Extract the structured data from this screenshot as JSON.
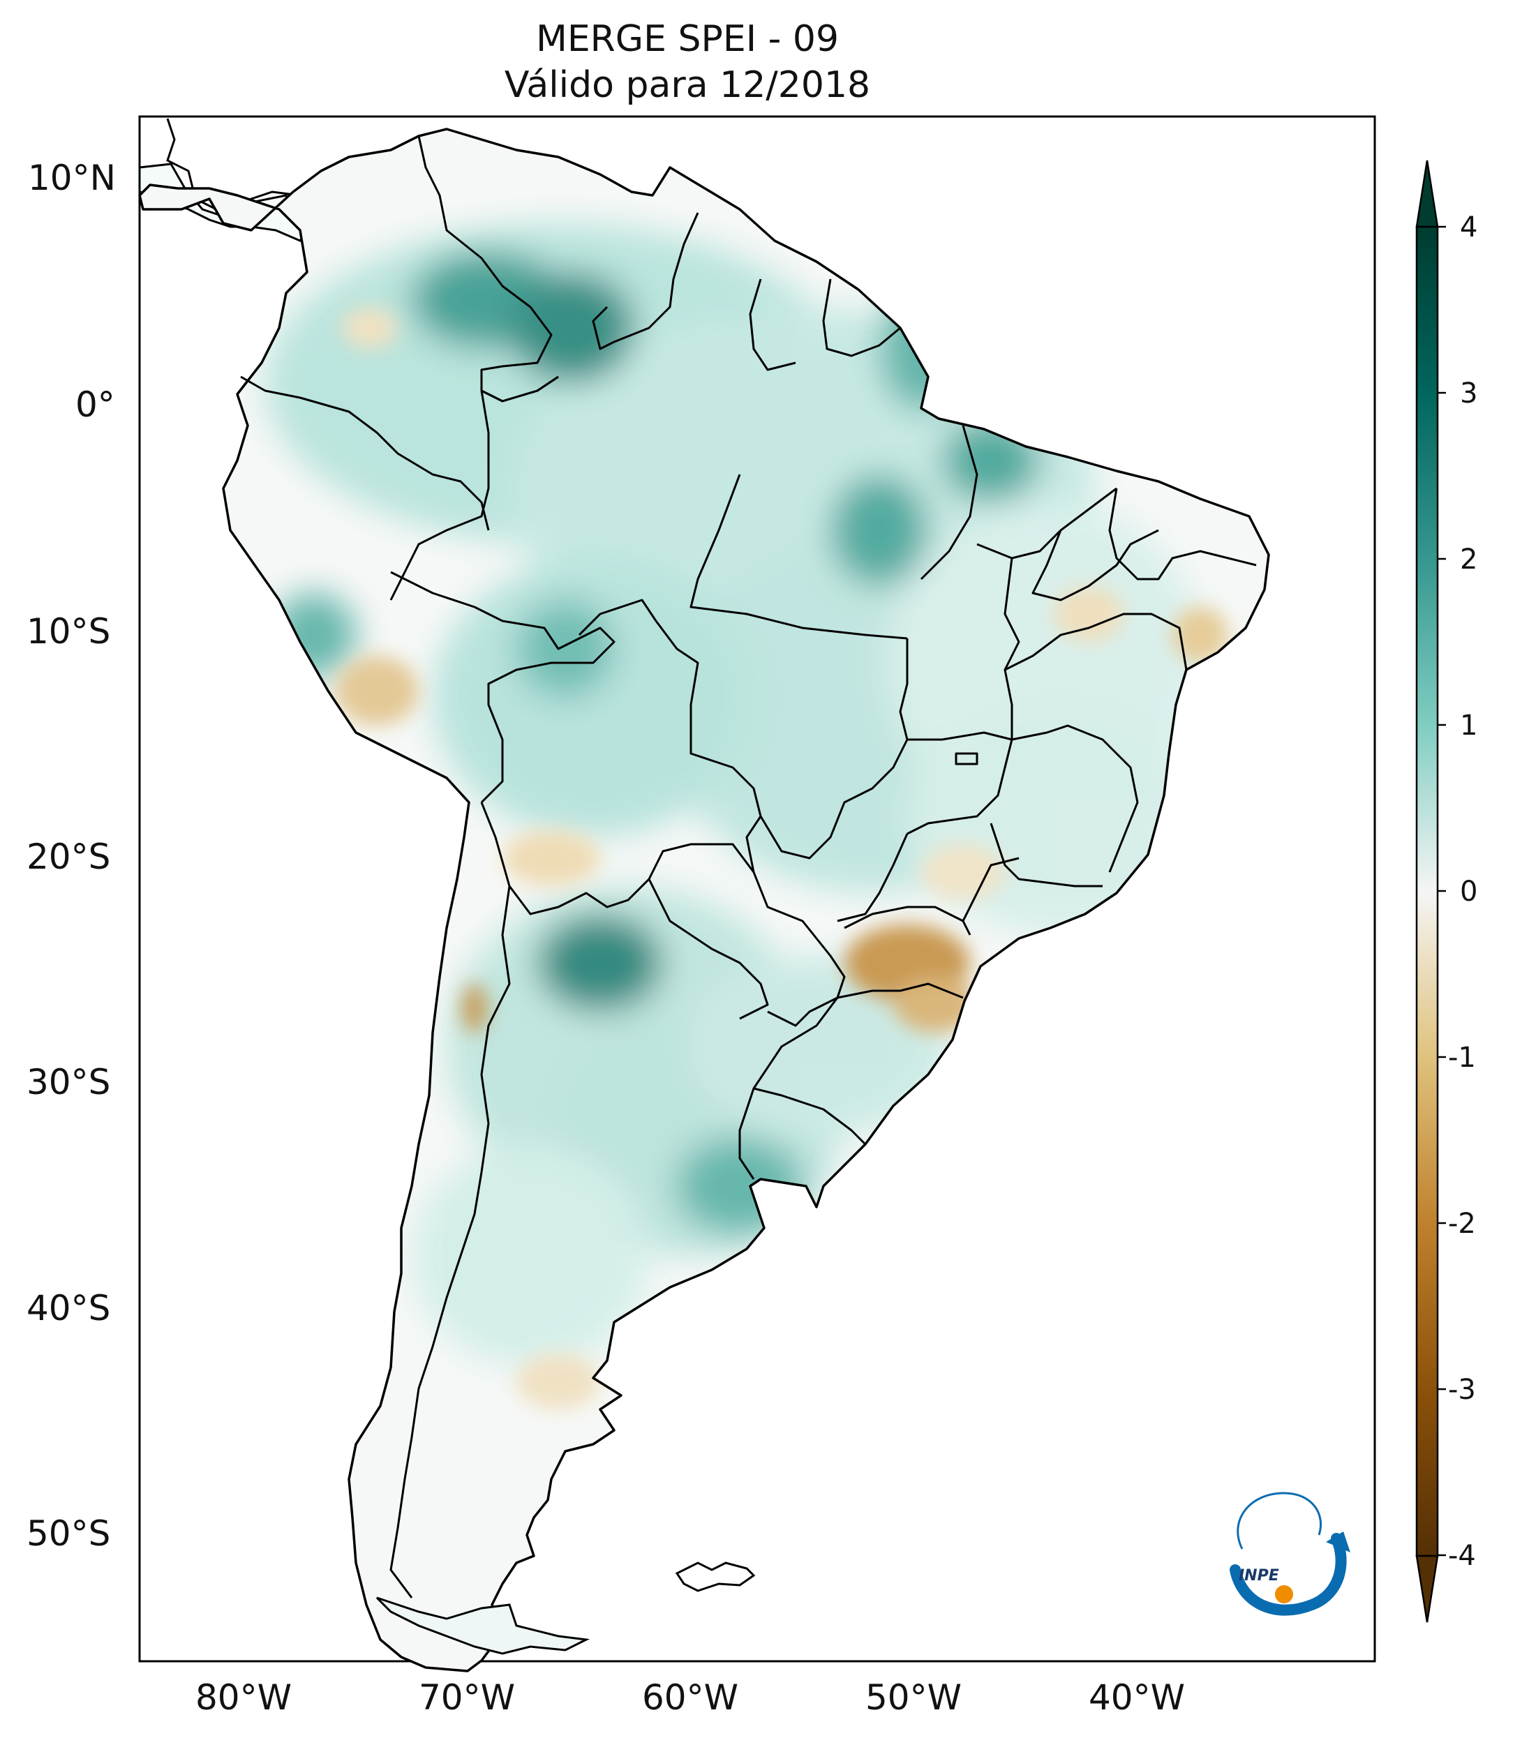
{
  "title": {
    "line1": "MERGE   SPEI - 09",
    "line2": "Válido para 12/2018"
  },
  "map": {
    "region": "South America",
    "projection": "plate carree",
    "lon_range": [
      -85,
      -30
    ],
    "lat_range": [
      -56,
      13
    ],
    "lat_ticks": [
      "10°N",
      "0°",
      "10°S",
      "20°S",
      "30°S",
      "40°S",
      "50°S"
    ],
    "lon_ticks": [
      "80°W",
      "70°W",
      "60°W",
      "50°W",
      "40°W"
    ],
    "boundaries": "country and Brazilian state borders in black"
  },
  "colorbar": {
    "colormap": "BrBG",
    "ticks": [
      "4",
      "3",
      "2",
      "1",
      "0",
      "-1",
      "-2",
      "-3",
      "-4"
    ],
    "extend": "both",
    "colors": {
      "max": "#003c30",
      "mid": "#f5f5f5",
      "min": "#543005"
    }
  },
  "logo": {
    "text": "INPE",
    "colors": {
      "arc": "#0a6cb0",
      "sun": "#f08c00"
    }
  }
}
